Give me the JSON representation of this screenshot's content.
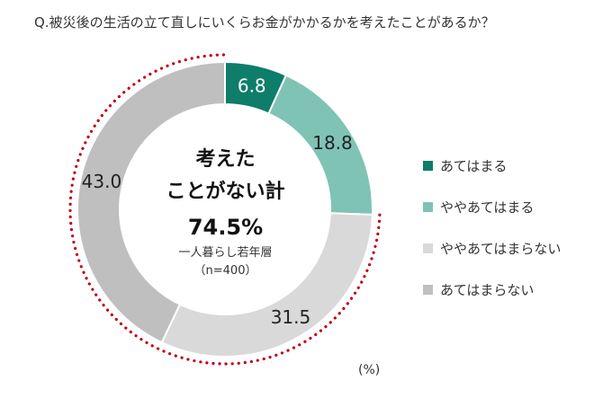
{
  "title": "Q.被災後の生活の立て直しにいくらお金がかかるかを考えたことがあるか？",
  "unit_label": "(%)",
  "center": {
    "line1": "考えた",
    "line2": "ことがない計",
    "value": "74.5%",
    "sub1": "一人暮らし若年層",
    "sub2": "（n=400）"
  },
  "chart_data": {
    "type": "pie",
    "categories": [
      "あてはまる",
      "ややあてはまる",
      "ややあてはまらない",
      "あてはまらない"
    ],
    "values": [
      6.8,
      18.8,
      31.5,
      43.0
    ],
    "value_labels": [
      "6.8",
      "18.8",
      "31.5",
      "43.0"
    ],
    "colors": [
      "#0e7d6a",
      "#7fc3b5",
      "#d9d9d9",
      "#bfbfbf"
    ],
    "label_colors": [
      "#ffffff",
      "#222222",
      "#222222",
      "#222222"
    ],
    "highlight_color": "#c0001a",
    "legend_position": "right"
  }
}
